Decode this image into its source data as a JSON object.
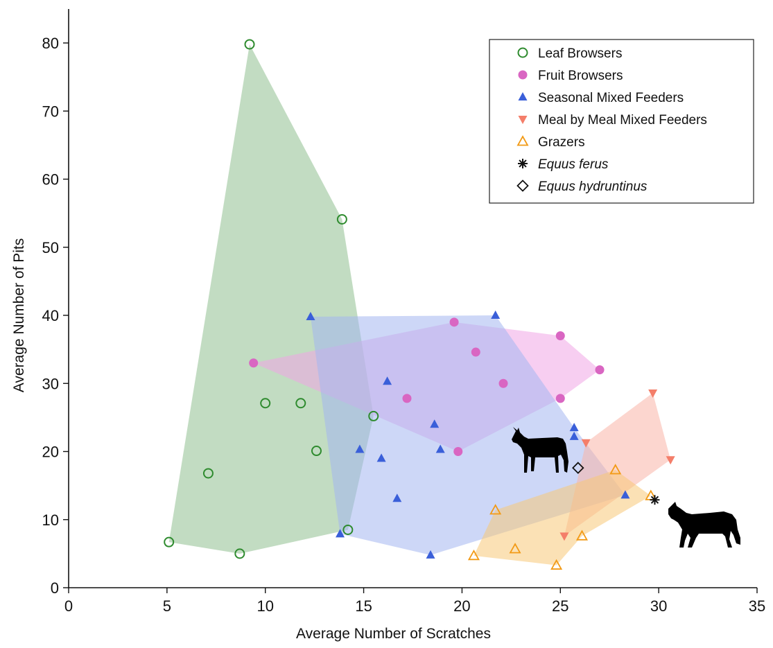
{
  "chart_data": {
    "type": "scatter",
    "title": "",
    "xlabel": "Average Number of Scratches",
    "ylabel": "Average Number of Pits",
    "xlim": [
      0,
      35
    ],
    "ylim": [
      0,
      85
    ],
    "xticks": [
      0,
      5,
      10,
      15,
      20,
      25,
      30,
      35
    ],
    "yticks": [
      0,
      10,
      20,
      30,
      40,
      50,
      60,
      70,
      80
    ],
    "grid": false,
    "legend_position": "top-right",
    "series": [
      {
        "name": "Leaf Browsers",
        "marker": "open-circle",
        "color": "#2e8b2e",
        "hull_fill": "#8fc08f",
        "points": [
          [
            9.2,
            79.8
          ],
          [
            13.9,
            54.1
          ],
          [
            10.0,
            27.1
          ],
          [
            11.8,
            27.1
          ],
          [
            15.5,
            25.2
          ],
          [
            12.6,
            20.1
          ],
          [
            7.1,
            16.8
          ],
          [
            5.1,
            6.7
          ],
          [
            8.7,
            5.0
          ],
          [
            14.2,
            8.5
          ]
        ],
        "hull": [
          [
            9.2,
            79.8
          ],
          [
            13.9,
            54.1
          ],
          [
            15.5,
            25.2
          ],
          [
            14.2,
            8.5
          ],
          [
            8.7,
            5.0
          ],
          [
            5.1,
            6.7
          ]
        ]
      },
      {
        "name": "Fruit Browsers",
        "marker": "filled-circle",
        "color": "#d966c2",
        "hull_fill": "#f0a5e6",
        "points": [
          [
            9.4,
            33.0
          ],
          [
            19.6,
            39.0
          ],
          [
            25.0,
            37.0
          ],
          [
            27.0,
            32.0
          ],
          [
            20.7,
            34.6
          ],
          [
            22.1,
            30.0
          ],
          [
            17.2,
            27.8
          ],
          [
            25.0,
            27.8
          ],
          [
            19.8,
            20.0
          ]
        ],
        "hull": [
          [
            9.4,
            33.0
          ],
          [
            19.6,
            39.0
          ],
          [
            25.0,
            37.0
          ],
          [
            27.0,
            32.0
          ],
          [
            25.0,
            27.8
          ],
          [
            19.8,
            20.0
          ]
        ]
      },
      {
        "name": "Seasonal Mixed Feeders",
        "marker": "filled-triangle-up",
        "color": "#3a5fd9",
        "hull_fill": "#a4b6f0",
        "points": [
          [
            12.3,
            39.8
          ],
          [
            21.7,
            40.0
          ],
          [
            16.2,
            30.3
          ],
          [
            18.6,
            24.0
          ],
          [
            14.8,
            20.3
          ],
          [
            15.9,
            19.0
          ],
          [
            18.9,
            20.3
          ],
          [
            16.7,
            13.1
          ],
          [
            25.7,
            23.5
          ],
          [
            25.7,
            22.2
          ],
          [
            28.3,
            13.6
          ],
          [
            13.8,
            7.9
          ],
          [
            18.4,
            4.8
          ]
        ],
        "hull": [
          [
            12.3,
            39.8
          ],
          [
            21.7,
            40.0
          ],
          [
            25.7,
            23.5
          ],
          [
            28.3,
            13.6
          ],
          [
            18.4,
            4.8
          ],
          [
            13.8,
            7.9
          ]
        ]
      },
      {
        "name": "Meal by Meal Mixed Feeders",
        "marker": "filled-triangle-down",
        "color": "#f47e6a",
        "hull_fill": "#f9b4a8",
        "points": [
          [
            29.7,
            28.6
          ],
          [
            26.3,
            21.3
          ],
          [
            30.6,
            18.8
          ],
          [
            25.2,
            7.6
          ]
        ],
        "hull": [
          [
            29.7,
            28.6
          ],
          [
            30.6,
            18.8
          ],
          [
            25.2,
            7.6
          ],
          [
            26.3,
            21.3
          ]
        ]
      },
      {
        "name": "Grazers",
        "marker": "open-triangle-up",
        "color": "#f29a15",
        "hull_fill": "#f8c878",
        "points": [
          [
            27.8,
            17.3
          ],
          [
            29.6,
            13.5
          ],
          [
            21.7,
            11.4
          ],
          [
            22.7,
            5.7
          ],
          [
            20.6,
            4.7
          ],
          [
            24.8,
            3.3
          ],
          [
            26.1,
            7.6
          ]
        ],
        "hull": [
          [
            27.8,
            17.3
          ],
          [
            29.6,
            13.5
          ],
          [
            26.1,
            7.6
          ],
          [
            24.8,
            3.3
          ],
          [
            20.6,
            4.7
          ],
          [
            21.7,
            11.4
          ]
        ]
      },
      {
        "name": "Equus ferus",
        "marker": "asterisk",
        "color": "#111111",
        "italic": true,
        "points": [
          [
            29.8,
            12.9
          ]
        ]
      },
      {
        "name": "Equus hydruntinus",
        "marker": "open-diamond",
        "color": "#111111",
        "italic": true,
        "points": [
          [
            25.9,
            17.6
          ]
        ]
      }
    ]
  },
  "decorations": {
    "icons": [
      "donkey-silhouette-icon",
      "horse-silhouette-icon"
    ]
  }
}
